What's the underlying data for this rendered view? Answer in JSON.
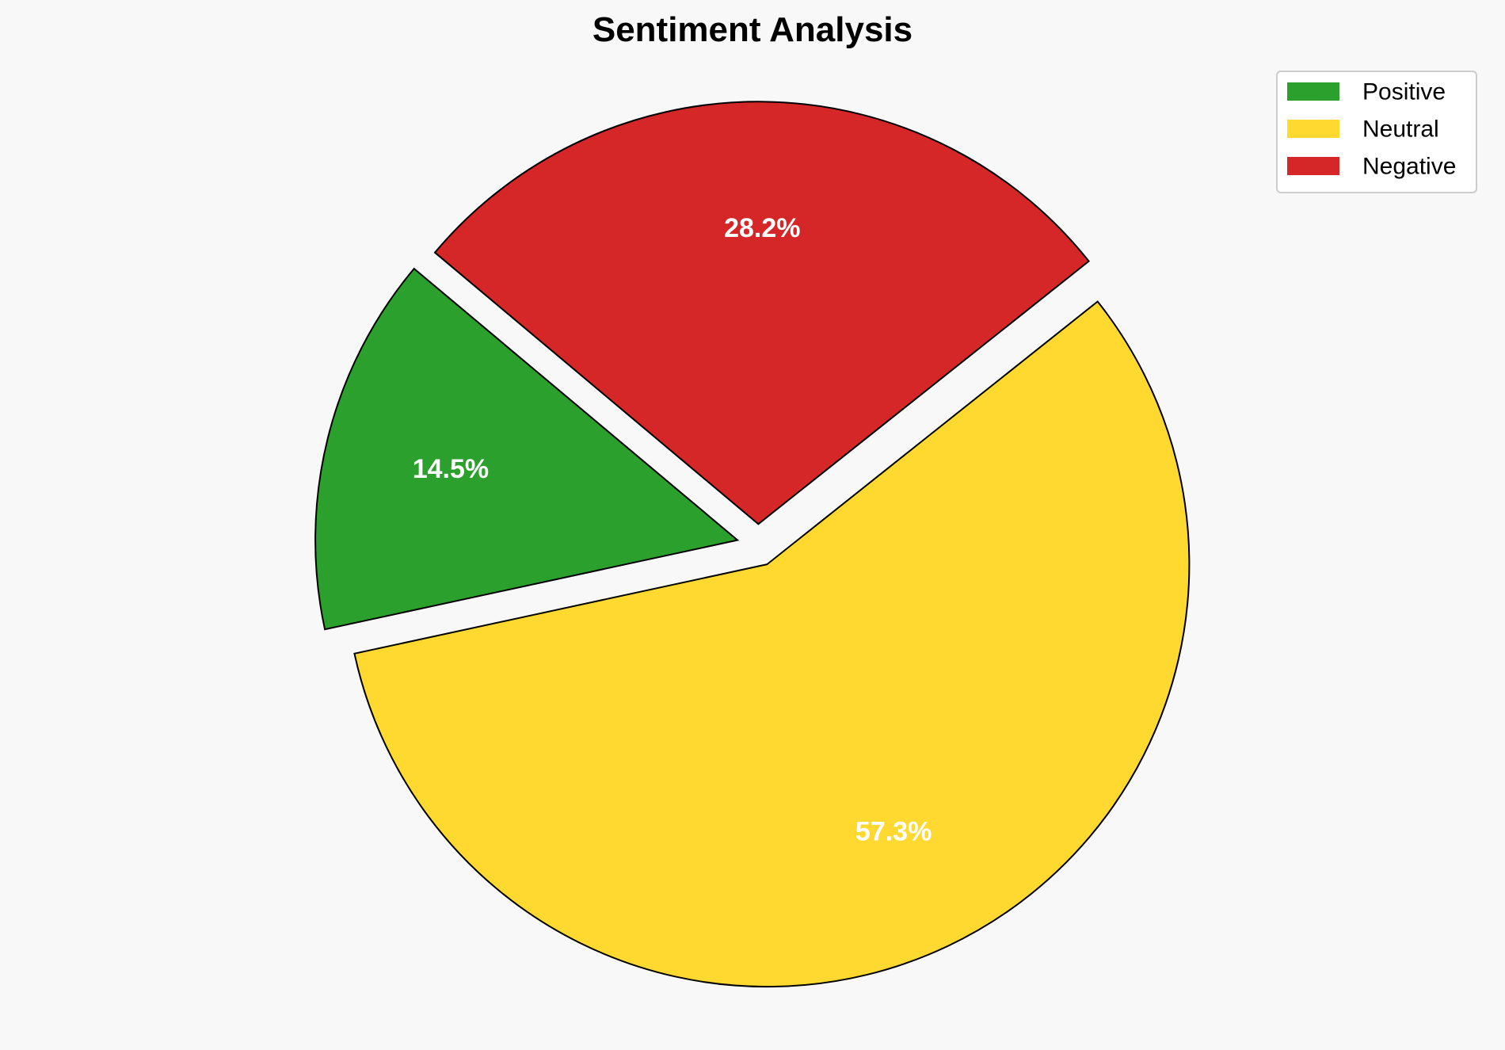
{
  "chart_data": {
    "type": "pie",
    "title": "Sentiment Analysis",
    "categories": [
      "Positive",
      "Neutral",
      "Negative"
    ],
    "values": [
      14.5,
      57.3,
      28.2
    ],
    "labels": [
      "14.5%",
      "57.3%",
      "28.2%"
    ],
    "colors": [
      "#2ca02c",
      "#ffd92f",
      "#d62728"
    ],
    "start_angle_deg": 140,
    "exploded": [
      true,
      true,
      true
    ],
    "legend_position": "top-right",
    "background": "#f8f8f8"
  }
}
